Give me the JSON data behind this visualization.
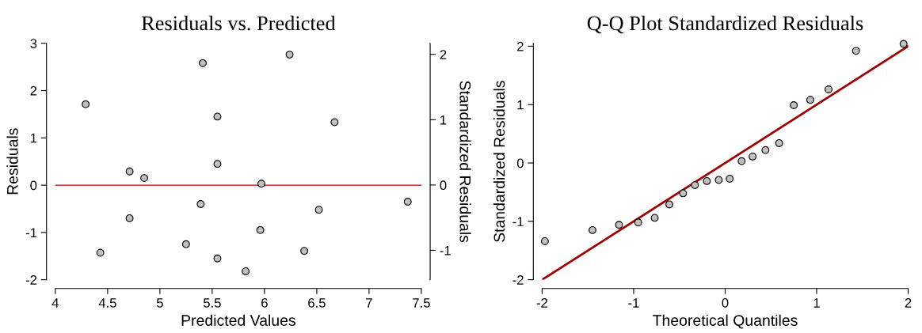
{
  "chart_data": [
    {
      "type": "scatter",
      "title": "Residuals vs. Predicted",
      "xlabel": "Predicted Values",
      "ylabel": "Residuals",
      "y2label": "Standardized Residuals",
      "color": "#c0c0c0",
      "marker": "circle",
      "grid": false,
      "x": [
        4.29,
        5.41,
        6.24,
        5.55,
        6.67,
        4.71,
        4.85,
        5.55,
        5.97,
        7.37,
        6.52,
        5.39,
        4.71,
        5.96,
        5.25,
        4.43,
        6.38,
        5.55,
        5.82
      ],
      "values": [
        1.71,
        2.58,
        2.76,
        1.45,
        1.33,
        0.29,
        0.15,
        0.45,
        0.03,
        -0.35,
        -0.52,
        -0.4,
        -0.7,
        -0.95,
        -1.25,
        -1.43,
        -1.39,
        -1.55,
        -1.82
      ],
      "xlim": [
        4,
        7.5
      ],
      "xticks": [
        4,
        4.5,
        5,
        5.5,
        6,
        6.5,
        7,
        7.5
      ],
      "ylim": [
        -2,
        3
      ],
      "yticks": [
        -2,
        -1,
        0,
        1,
        2,
        3
      ],
      "y2lim": [
        -1.45,
        2.17
      ],
      "y2ticks": [
        -1,
        0,
        1,
        2
      ],
      "ref_lines": [
        {
          "axis": "y",
          "value": 0,
          "color": "#c00000"
        }
      ]
    },
    {
      "type": "scatter",
      "title": "Q-Q Plot Standardized Residuals",
      "xlabel": "Theoretical Quantiles",
      "ylabel": "Standardized Residuals",
      "marker": "circle",
      "grid": false,
      "xlim": [
        -2,
        2
      ],
      "xticks": [
        -2,
        -1,
        0,
        1,
        2
      ],
      "ylim": [
        -2,
        2.05
      ],
      "yticks": [
        -2,
        -1,
        0,
        1,
        2
      ],
      "series": [
        {
          "type": "line",
          "marker": "none",
          "color": "#a00000",
          "x": [
            -2,
            2
          ],
          "values": [
            -2,
            2
          ]
        },
        {
          "type": "scatter",
          "color": "#c0c0c0",
          "x": [
            -1.97,
            -1.45,
            -1.16,
            -0.95,
            -0.77,
            -0.61,
            -0.46,
            -0.33,
            -0.2,
            -0.07,
            0.05,
            0.18,
            0.3,
            0.44,
            0.59,
            0.75,
            0.93,
            1.13,
            1.43,
            1.95
          ],
          "values": [
            -1.34,
            -1.15,
            -1.06,
            -1.02,
            -0.94,
            -0.71,
            -0.52,
            -0.38,
            -0.31,
            -0.29,
            -0.27,
            0.03,
            0.11,
            0.22,
            0.34,
            0.99,
            1.08,
            1.26,
            1.92,
            2.04
          ]
        }
      ]
    }
  ]
}
